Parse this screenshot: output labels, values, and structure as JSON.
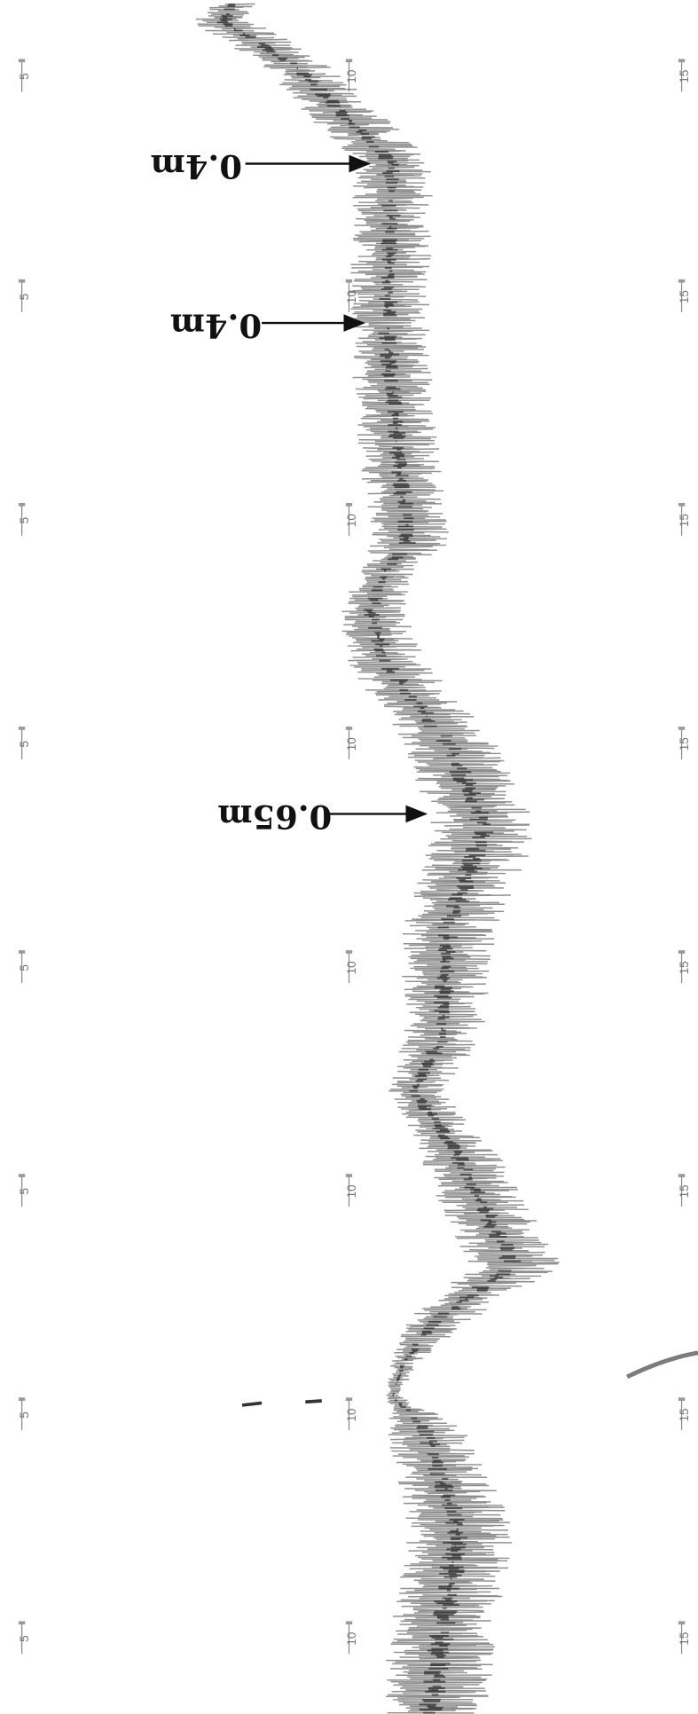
{
  "annotations": [
    {
      "text": "0.4m"
    },
    {
      "text": "0.4m"
    },
    {
      "text": "0.65m"
    }
  ],
  "scale_labels": [
    "5",
    "10",
    "15"
  ]
}
